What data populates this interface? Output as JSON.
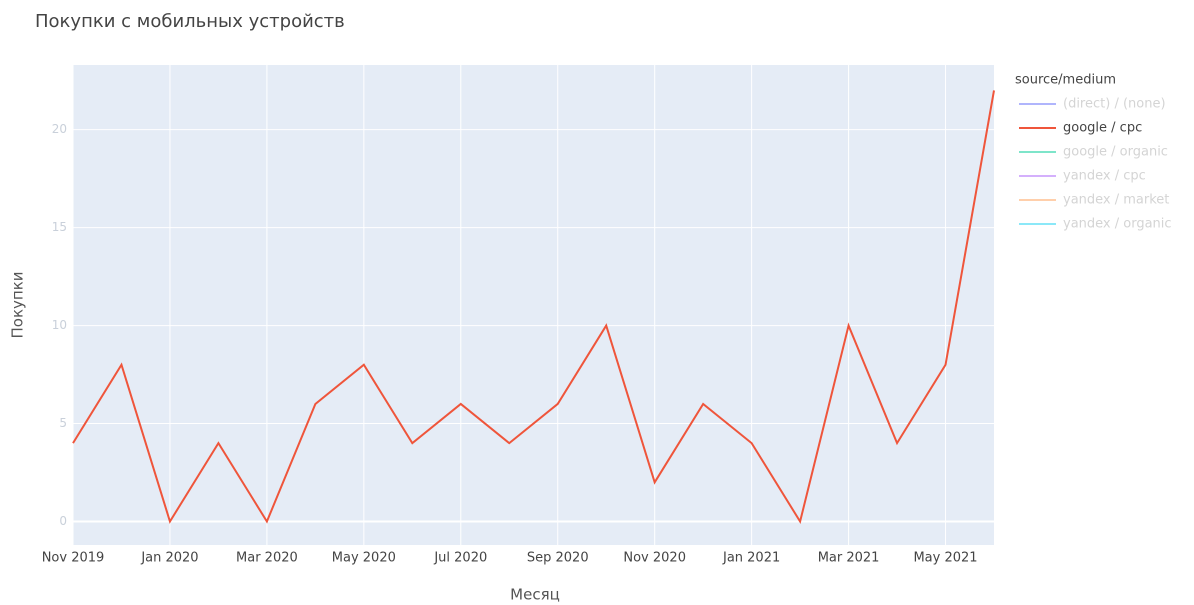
{
  "chart_data": {
    "type": "line",
    "title": "Покупки с мобильных устройств",
    "xlabel": "Месяц",
    "ylabel": "Покупки",
    "x": [
      "2019-11",
      "2019-12",
      "2020-01",
      "2020-02",
      "2020-03",
      "2020-04",
      "2020-05",
      "2020-06",
      "2020-07",
      "2020-08",
      "2020-09",
      "2020-10",
      "2020-11",
      "2020-12",
      "2021-01",
      "2021-02",
      "2021-03",
      "2021-04",
      "2021-05",
      "2021-06"
    ],
    "xlim": [
      "2019-11",
      "2021-06"
    ],
    "xticks": [
      {
        "value": "2019-11",
        "label": "Nov 2019"
      },
      {
        "value": "2020-01",
        "label": "Jan 2020"
      },
      {
        "value": "2020-03",
        "label": "Mar 2020"
      },
      {
        "value": "2020-05",
        "label": "May 2020"
      },
      {
        "value": "2020-07",
        "label": "Jul 2020"
      },
      {
        "value": "2020-09",
        "label": "Sep 2020"
      },
      {
        "value": "2020-11",
        "label": "Nov 2020"
      },
      {
        "value": "2021-01",
        "label": "Jan 2021"
      },
      {
        "value": "2021-03",
        "label": "Mar 2021"
      },
      {
        "value": "2021-05",
        "label": "May 2021"
      }
    ],
    "ylim": [
      -1.2,
      23.3
    ],
    "yticks": [
      0,
      5,
      10,
      15,
      20
    ],
    "grid": true,
    "legend_title": "source/medium",
    "legend": "right",
    "series": [
      {
        "name": "(direct) / (none)",
        "color": "#636efa",
        "visible": false
      },
      {
        "name": "google / cpc",
        "color": "#EF553B",
        "visible": true,
        "values": [
          4,
          8,
          0,
          4,
          0,
          6,
          8,
          4,
          6,
          4,
          6,
          10,
          2,
          6,
          4,
          0,
          10,
          4,
          8,
          22
        ]
      },
      {
        "name": "google / organic",
        "color": "#00cc96",
        "visible": false
      },
      {
        "name": "yandex / cpc",
        "color": "#ab63fa",
        "visible": false
      },
      {
        "name": "yandex / market",
        "color": "#FFA15A",
        "visible": false
      },
      {
        "name": "yandex / organic",
        "color": "#19d3f3",
        "visible": false
      }
    ]
  }
}
